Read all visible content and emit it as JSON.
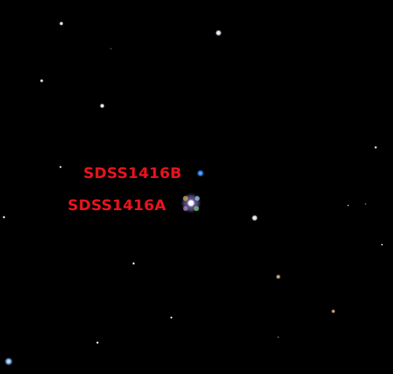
{
  "image": {
    "background_color": "#000000",
    "label_color": "#e8141c"
  },
  "labels": {
    "object_b": "SDSS1416B",
    "object_a": "SDSS1416A"
  },
  "object_colors": {
    "object_b": "#1e6fd6",
    "object_a": "#c9c4f0"
  }
}
